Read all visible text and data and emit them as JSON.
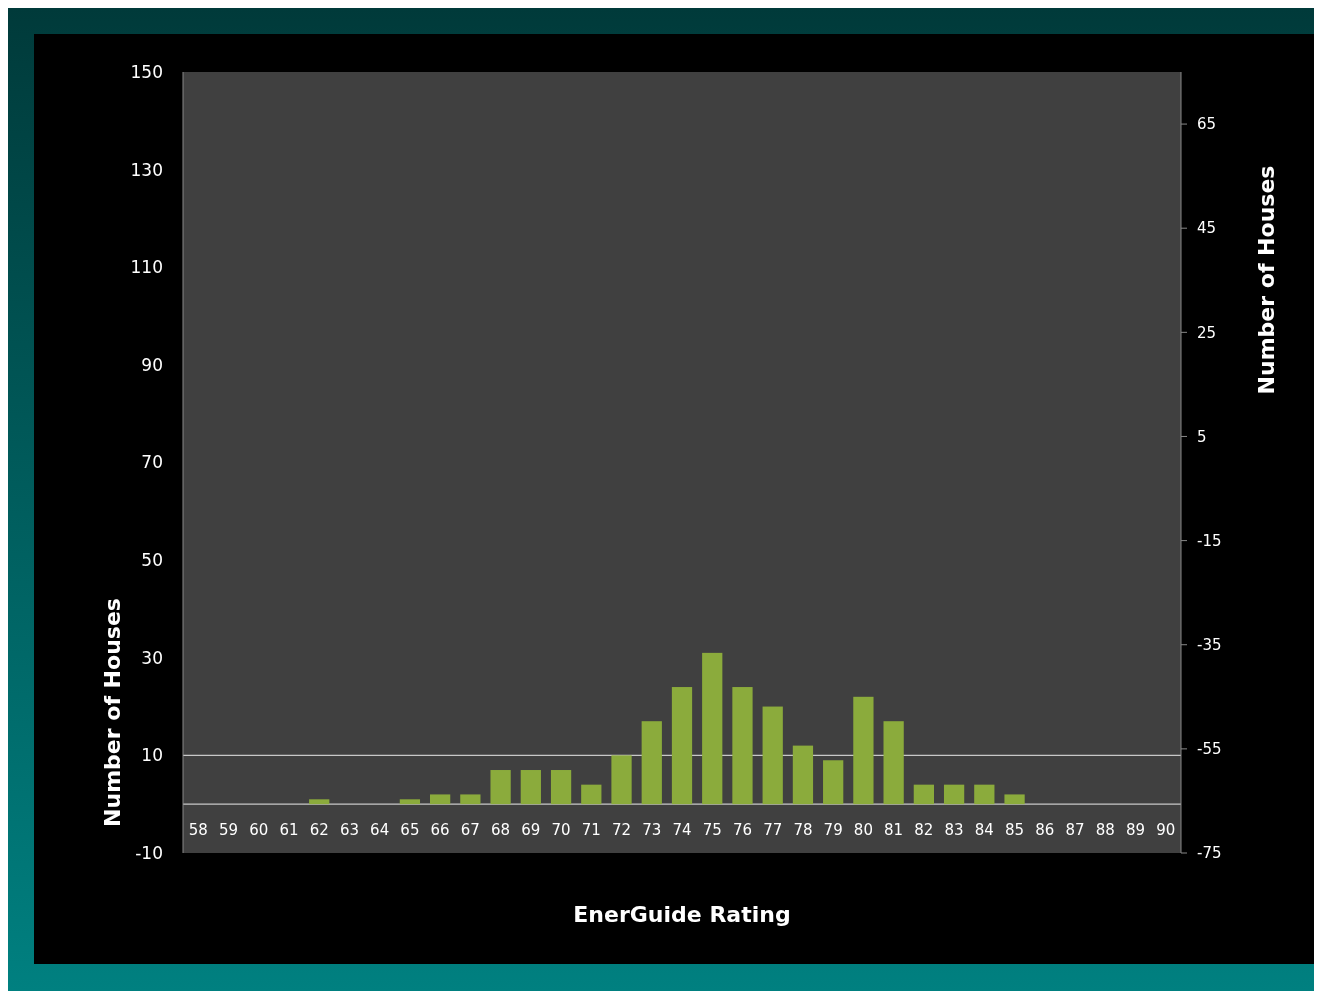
{
  "chart_data": {
    "type": "bar",
    "xlabel": "EnerGuide Rating",
    "ylabel": "Number of Houses",
    "y2label": "Number of Houses",
    "categories": [
      "58",
      "59",
      "60",
      "61",
      "62",
      "63",
      "64",
      "65",
      "66",
      "67",
      "68",
      "69",
      "70",
      "71",
      "72",
      "73",
      "74",
      "75",
      "76",
      "77",
      "78",
      "79",
      "80",
      "81",
      "82",
      "83",
      "84",
      "85",
      "86",
      "87",
      "88",
      "89",
      "90"
    ],
    "values": [
      0,
      0,
      0,
      0,
      1,
      0,
      0,
      1,
      2,
      2,
      7,
      7,
      7,
      4,
      10,
      17,
      24,
      31,
      24,
      20,
      12,
      9,
      22,
      17,
      4,
      4,
      4,
      2,
      0,
      0,
      0,
      0,
      0
    ],
    "color": "#8bab3c",
    "ylim": [
      -10,
      150
    ],
    "yticks": [
      -10,
      10,
      30,
      50,
      70,
      90,
      110,
      130,
      150
    ],
    "y2lim": [
      -75,
      75
    ],
    "y2ticks": [
      -75,
      -55,
      -35,
      -15,
      5,
      25,
      45,
      65
    ],
    "ref_lines": [
      {
        "axis": "y",
        "value": 10,
        "color": "#c8c8c8"
      },
      {
        "axis": "y",
        "value": 0,
        "color": "#c8c8c8"
      }
    ],
    "grid": false
  }
}
